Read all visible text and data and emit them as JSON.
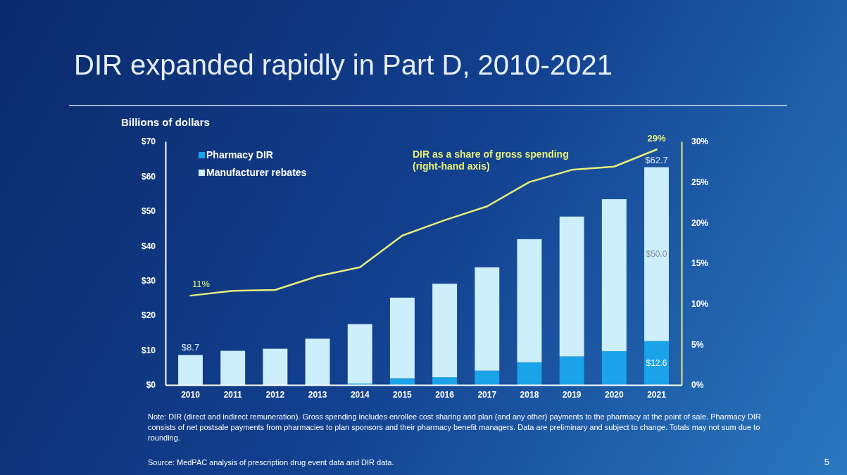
{
  "chart_data": {
    "type": "bar",
    "title": "DIR expanded rapidly in Part D, 2010-2021",
    "ylabel": "Billions of dollars",
    "categories": [
      "2010",
      "2011",
      "2012",
      "2013",
      "2014",
      "2015",
      "2016",
      "2017",
      "2018",
      "2019",
      "2020",
      "2021"
    ],
    "stacked": true,
    "series": [
      {
        "name": "Pharmacy DIR",
        "color": "#1aa3e8",
        "values": [
          null,
          null,
          null,
          null,
          0.4,
          1.9,
          2.2,
          4.1,
          6.5,
          8.2,
          9.7,
          12.6
        ],
        "value_labels": [
          null,
          null,
          null,
          null,
          null,
          null,
          null,
          null,
          null,
          null,
          null,
          "$12.6"
        ]
      },
      {
        "name": "Manufacturer rebates",
        "color": "#cdeefb",
        "values": [
          8.6,
          9.8,
          10.4,
          13.3,
          17.1,
          23.2,
          26.9,
          29.7,
          35.4,
          40.2,
          43.7,
          50.0
        ],
        "value_labels": [
          null,
          null,
          null,
          null,
          null,
          null,
          null,
          null,
          null,
          null,
          null,
          "$50.0"
        ]
      },
      {
        "name": "DIR as a share of gross spending (right-hand axis)",
        "type": "line",
        "axis": "y2",
        "color": "#e8f07a",
        "values": [
          11,
          11.6,
          11.7,
          13.4,
          14.5,
          18.4,
          20.3,
          22.0,
          25.0,
          26.5,
          26.9,
          29
        ],
        "value_labels": [
          "11%",
          null,
          null,
          null,
          null,
          null,
          null,
          null,
          null,
          null,
          null,
          "29%"
        ]
      }
    ],
    "totals": [
      "$8.7",
      null,
      null,
      null,
      null,
      null,
      null,
      null,
      null,
      null,
      null,
      "$62.7"
    ],
    "ylim": [
      0,
      70
    ],
    "yticks": [
      {
        "value": 0,
        "label": "$0"
      },
      {
        "value": 10,
        "label": "$10"
      },
      {
        "value": 20,
        "label": "$20"
      },
      {
        "value": 30,
        "label": "$30"
      },
      {
        "value": 40,
        "label": "$40"
      },
      {
        "value": 50,
        "label": "$50"
      },
      {
        "value": 60,
        "label": "$60"
      },
      {
        "value": 70,
        "label": "$70"
      }
    ],
    "y2lim": [
      0,
      30
    ],
    "y2ticks": [
      {
        "value": 0,
        "label": "0%"
      },
      {
        "value": 5,
        "label": "5%"
      },
      {
        "value": 10,
        "label": "10%"
      },
      {
        "value": 15,
        "label": "15%"
      },
      {
        "value": 20,
        "label": "20%"
      },
      {
        "value": 25,
        "label": "25%"
      },
      {
        "value": 30,
        "label": "30%"
      }
    ],
    "legend": "top left",
    "grid": false,
    "marker": "none",
    "annotations": [
      "Note:  DIR (direct and indirect remuneration). Gross spending includes enrollee cost sharing and plan (and any other) payments to the pharmacy at the point of sale. Pharmacy DIR consists of net postsale payments from pharmacies to plan sponsors and their pharmacy benefit managers. Data are preliminary and subject to change. Totals may not sum due to rounding.",
      "Source: MedPAC analysis of prescription drug event data and DIR data.",
      "5"
    ]
  }
}
